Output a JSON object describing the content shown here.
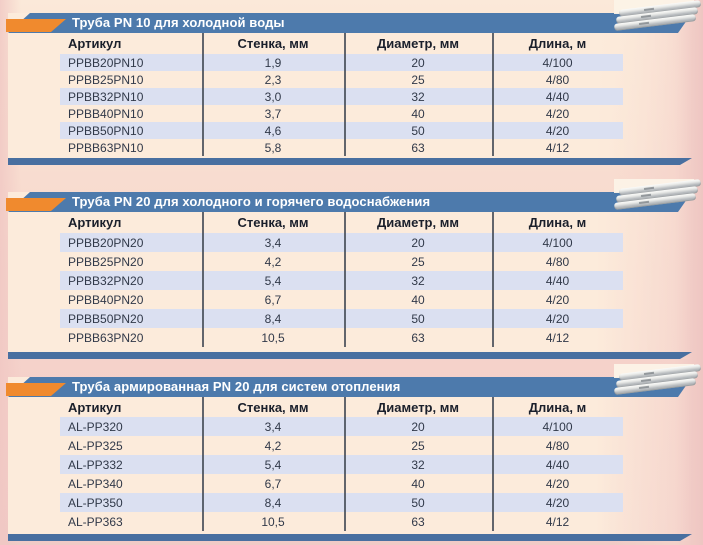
{
  "colors": {
    "bar_blue": "#4d7aac",
    "bottom_bar_blue": "#486fa0",
    "flag_orange": "#f08a2e",
    "row_stripe": "#dbe0f1",
    "panel_cream": "#fcebdb",
    "background_pink": "#f4cfc9",
    "title_text": "#ffffff",
    "table_text": "#313949"
  },
  "icons": {
    "pipes_photo": "pipes-photo-icon"
  },
  "tables": [
    {
      "title": "Труба PN 10 для холодной воды",
      "columns": [
        "Артикул",
        "Стенка, мм",
        "Диаметр, мм",
        "Длина, м"
      ],
      "rows": [
        [
          "PPBB20PN10",
          "1,9",
          "20",
          "4/100"
        ],
        [
          "PPBB25PN10",
          "2,3",
          "25",
          "4/80"
        ],
        [
          "PPBB32PN10",
          "3,0",
          "32",
          "4/40"
        ],
        [
          "PPBB40PN10",
          "3,7",
          "40",
          "4/20"
        ],
        [
          "PPBB50PN10",
          "4,6",
          "50",
          "4/20"
        ],
        [
          "PPBB63PN10",
          "5,8",
          "63",
          "4/12"
        ]
      ]
    },
    {
      "title": "Труба PN 20 для холодного и горячего водоснабжения",
      "columns": [
        "Артикул",
        "Стенка, мм",
        "Диаметр, мм",
        "Длина, м"
      ],
      "rows": [
        [
          "PPBB20PN20",
          "3,4",
          "20",
          "4/100"
        ],
        [
          "PPBB25PN20",
          "4,2",
          "25",
          "4/80"
        ],
        [
          "PPBB32PN20",
          "5,4",
          "32",
          "4/40"
        ],
        [
          "PPBB40PN20",
          "6,7",
          "40",
          "4/20"
        ],
        [
          "PPBB50PN20",
          "8,4",
          "50",
          "4/20"
        ],
        [
          "PPBB63PN20",
          "10,5",
          "63",
          "4/12"
        ]
      ]
    },
    {
      "title": "Труба армированная PN 20 для систем отопления",
      "columns": [
        "Артикул",
        "Стенка, мм",
        "Диаметр, мм",
        "Длина, м"
      ],
      "rows": [
        [
          "AL-PP320",
          "3,4",
          "20",
          "4/100"
        ],
        [
          "AL-PP325",
          "4,2",
          "25",
          "4/80"
        ],
        [
          "AL-PP332",
          "5,4",
          "32",
          "4/40"
        ],
        [
          "AL-PP340",
          "6,7",
          "40",
          "4/20"
        ],
        [
          "AL-PP350",
          "8,4",
          "50",
          "4/20"
        ],
        [
          "AL-PP363",
          "10,5",
          "63",
          "4/12"
        ]
      ]
    }
  ]
}
